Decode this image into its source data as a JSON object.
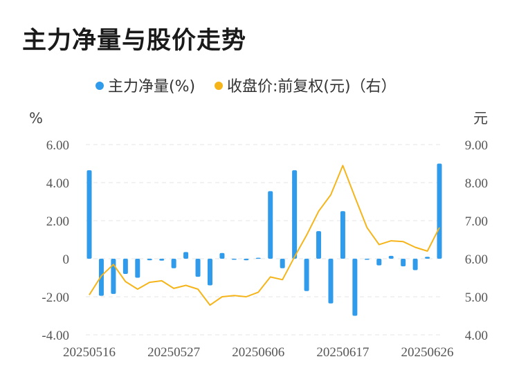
{
  "title": "主力净量与股价走势",
  "colors": {
    "bar": "#2f9bea",
    "line": "#f5b51a",
    "grid": "#e6e6e6"
  },
  "chart_data": {
    "type": "bar",
    "legend": [
      {
        "label": "主力净量(%)",
        "color": "#2f9bea"
      },
      {
        "label": "收盘价:前复权(元)（右）",
        "color": "#f5b51a"
      }
    ],
    "left_axis": {
      "unit": "%",
      "ylim": [
        -4,
        6
      ],
      "ticks": [
        "6.00",
        "4.00",
        "2.00",
        "0",
        "-2.00",
        "-4.00"
      ]
    },
    "right_axis": {
      "unit": "元",
      "ylim": [
        4,
        9
      ],
      "ticks": [
        "9.00",
        "8.00",
        "7.00",
        "6.00",
        "5.00",
        "4.00"
      ]
    },
    "x_tick_labels": [
      "20250516",
      "20250527",
      "20250606",
      "20250617",
      "20250626"
    ],
    "x_tick_index": [
      0,
      7,
      14,
      21,
      28
    ],
    "series": [
      {
        "name": "主力净量(%)",
        "type": "bar",
        "axis": "left",
        "values": [
          4.65,
          -1.95,
          -1.85,
          -0.8,
          -1.0,
          -0.08,
          -0.1,
          -0.5,
          0.35,
          -0.95,
          -1.4,
          0.3,
          -0.05,
          -0.08,
          0.05,
          3.55,
          -0.5,
          4.65,
          -1.7,
          1.45,
          -2.35,
          2.5,
          -3.0,
          -0.05,
          -0.35,
          0.15,
          -0.4,
          -0.6,
          0.1,
          5.0
        ]
      },
      {
        "name": "收盘价:前复权(元)（右）",
        "type": "line",
        "axis": "right",
        "values": [
          5.05,
          5.55,
          5.85,
          5.4,
          5.2,
          5.38,
          5.42,
          5.22,
          5.3,
          5.2,
          4.78,
          5.0,
          5.03,
          5.0,
          5.12,
          5.52,
          5.45,
          6.05,
          6.62,
          7.25,
          7.68,
          8.45,
          7.62,
          6.82,
          6.37,
          6.47,
          6.45,
          6.3,
          6.2,
          6.82
        ]
      }
    ]
  }
}
